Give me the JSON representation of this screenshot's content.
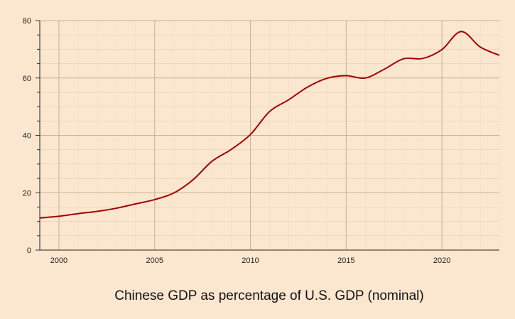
{
  "chart_data": {
    "type": "line",
    "title": "Chinese GDP as percentage of U.S. GDP (nominal)",
    "xlabel": "",
    "ylabel": "",
    "xlim": [
      1999,
      2023
    ],
    "ylim": [
      0,
      80
    ],
    "x_ticks": [
      2000,
      2005,
      2010,
      2015,
      2020
    ],
    "y_ticks": [
      0,
      20,
      40,
      60,
      80
    ],
    "grid": true,
    "series": [
      {
        "name": "Chinese GDP as % of U.S. GDP",
        "color": "#a30000",
        "x": [
          1999,
          2000,
          2001,
          2002,
          2003,
          2004,
          2005,
          2006,
          2007,
          2008,
          2009,
          2010,
          2011,
          2012,
          2013,
          2014,
          2015,
          2016,
          2017,
          2018,
          2019,
          2020,
          2021,
          2022,
          2023
        ],
        "y": [
          11.2,
          11.8,
          12.7,
          13.5,
          14.6,
          16.1,
          17.6,
          19.9,
          24.5,
          31.0,
          35.1,
          40.3,
          48.3,
          52.4,
          56.9,
          59.9,
          60.8,
          60.0,
          63.1,
          66.7,
          66.8,
          69.9,
          76.2,
          70.8,
          67.9
        ]
      }
    ]
  },
  "colors": {
    "background": "#fbe6cf",
    "grid": "#c7b196",
    "line": "#a30000"
  }
}
